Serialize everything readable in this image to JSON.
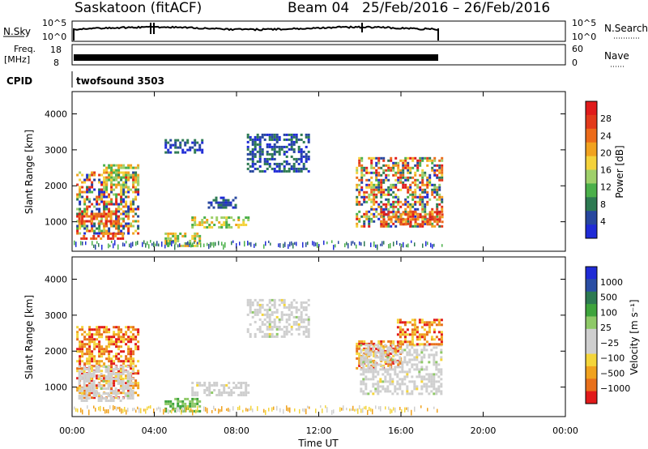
{
  "header": {
    "radar": "Saskatoon (fitACF)",
    "beam": "Beam 04",
    "dates": "25/Feb/2016 – 26/Feb/2016"
  },
  "strips": {
    "nsky": {
      "label": "N.Sky",
      "ticks": [
        "10^5",
        "10^0"
      ],
      "right_label": "N.Search",
      "right_ticks": [
        "10^5",
        "10^0"
      ]
    },
    "freq": {
      "label_top": "Freq.",
      "label_unit": "[MHz]",
      "ticks": [
        "18",
        "8"
      ],
      "right_label": "Nave",
      "right_ticks": [
        "60",
        "0"
      ]
    },
    "cpid": {
      "label": "CPID",
      "program": "twofsound 3503"
    }
  },
  "colors": {
    "power": [
      "#1f2bd6",
      "#27479e",
      "#2d7a52",
      "#4bb04a",
      "#9fd06a",
      "#f4d23b",
      "#f1a21f",
      "#ec6b1a",
      "#e23a1b",
      "#e01b1b"
    ],
    "velocity_scale": [
      "#e21a1a",
      "#e8701b",
      "#f0a21e",
      "#f4d53a",
      "#cfcfcf",
      "#cfcfcf",
      "#8ec967",
      "#3ea43c",
      "#2d7a52",
      "#2a4ea4",
      "#1f2bd6"
    ]
  },
  "chart_data": [
    {
      "type": "heatmap",
      "name": "power",
      "ylabel": "Slant Range [km]",
      "yticks": [
        "1000",
        "2000",
        "3000",
        "4000"
      ],
      "ylim": [
        180,
        4620
      ],
      "xlim": [
        0,
        24
      ],
      "colorbar_label": "Power [dB]",
      "colorbar_ticks": [
        "4",
        "8",
        "12",
        "16",
        "20",
        "24",
        "28"
      ],
      "blobs": [
        {
          "t0": 0.2,
          "t1": 3.2,
          "r0": 650,
          "r1": 2400,
          "level": "mixed"
        },
        {
          "t0": 0.3,
          "t1": 2.2,
          "r0": 950,
          "r1": 1250,
          "level": "high"
        },
        {
          "t0": 1.5,
          "t1": 3.2,
          "r0": 1900,
          "r1": 2600,
          "level": "mid"
        },
        {
          "t0": 0.4,
          "t1": 2.5,
          "r0": 500,
          "r1": 700,
          "level": "high"
        },
        {
          "t0": 4.5,
          "t1": 6.2,
          "r0": 300,
          "r1": 700,
          "level": "mid"
        },
        {
          "t0": 5.8,
          "t1": 8.6,
          "r0": 850,
          "r1": 1150,
          "level": "mid"
        },
        {
          "t0": 6.6,
          "t1": 8.0,
          "r0": 1400,
          "r1": 1700,
          "level": "low"
        },
        {
          "t0": 8.5,
          "t1": 11.5,
          "r0": 2400,
          "r1": 3450,
          "level": "low"
        },
        {
          "t0": 13.8,
          "t1": 18.0,
          "r0": 850,
          "r1": 2800,
          "level": "mixed"
        },
        {
          "t0": 15.0,
          "t1": 18.0,
          "r0": 950,
          "r1": 1300,
          "level": "high"
        },
        {
          "t0": 4.5,
          "t1": 6.3,
          "r0": 2900,
          "r1": 3300,
          "level": "low"
        }
      ]
    },
    {
      "type": "heatmap",
      "name": "velocity",
      "ylabel": "Slant Range [km]",
      "yticks": [
        "1000",
        "2000",
        "3000",
        "4000"
      ],
      "ylim": [
        180,
        4620
      ],
      "xlim": [
        0,
        24
      ],
      "xlabel": "Time UT",
      "xticks": [
        "00:00",
        "04:00",
        "08:00",
        "12:00",
        "16:00",
        "20:00",
        "00:00"
      ],
      "colorbar_label": "Velocity [m s⁻¹]",
      "colorbar_ticks": [
        "1000",
        "500",
        "100",
        "25",
        "−25",
        "−100",
        "−500",
        "−1000"
      ],
      "blobs": [
        {
          "t0": 0.2,
          "t1": 3.2,
          "r0": 700,
          "r1": 2700,
          "level": "neg"
        },
        {
          "t0": 0.3,
          "t1": 3.0,
          "r0": 600,
          "r1": 1600,
          "level": "gray"
        },
        {
          "t0": 4.5,
          "t1": 6.2,
          "r0": 300,
          "r1": 700,
          "level": "pos"
        },
        {
          "t0": 5.8,
          "t1": 8.6,
          "r0": 800,
          "r1": 1150,
          "level": "gray"
        },
        {
          "t0": 8.5,
          "t1": 11.5,
          "r0": 2400,
          "r1": 3450,
          "level": "gray"
        },
        {
          "t0": 13.8,
          "t1": 16.0,
          "r0": 1500,
          "r1": 2300,
          "level": "neg"
        },
        {
          "t0": 14.0,
          "t1": 18.0,
          "r0": 800,
          "r1": 2200,
          "level": "gray"
        },
        {
          "t0": 15.8,
          "t1": 18.0,
          "r0": 2200,
          "r1": 2900,
          "level": "neg"
        }
      ]
    }
  ]
}
